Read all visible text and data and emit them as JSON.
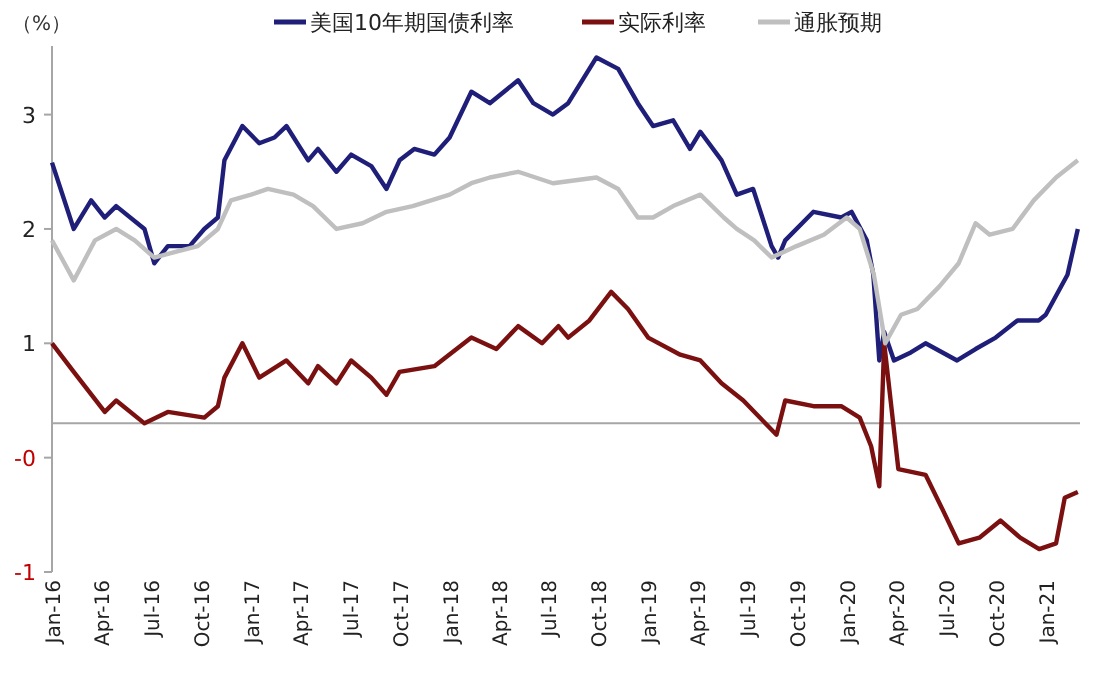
{
  "chart_data": {
    "type": "line",
    "ylabel": "（%）",
    "legend": "top",
    "xlim": [
      "2016-01-01",
      "2021-03-05"
    ],
    "ylim": [
      -1,
      3.6
    ],
    "yticks": [
      {
        "value": 3,
        "label": "3"
      },
      {
        "value": 2,
        "label": "2"
      },
      {
        "value": 1,
        "label": "1"
      },
      {
        "value": 0,
        "label": "-0"
      },
      {
        "value": -1,
        "label": "-1"
      }
    ],
    "xticks": [
      {
        "value": "2016-01-01",
        "label": "Jan-16"
      },
      {
        "value": "2016-04-01",
        "label": "Apr-16"
      },
      {
        "value": "2016-07-01",
        "label": "Jul-16"
      },
      {
        "value": "2016-10-01",
        "label": "Oct-16"
      },
      {
        "value": "2017-01-01",
        "label": "Jan-17"
      },
      {
        "value": "2017-04-01",
        "label": "Apr-17"
      },
      {
        "value": "2017-07-01",
        "label": "Jul-17"
      },
      {
        "value": "2017-10-01",
        "label": "Oct-17"
      },
      {
        "value": "2018-01-01",
        "label": "Jan-18"
      },
      {
        "value": "2018-04-01",
        "label": "Apr-18"
      },
      {
        "value": "2018-07-01",
        "label": "Jul-18"
      },
      {
        "value": "2018-10-01",
        "label": "Oct-18"
      },
      {
        "value": "2019-01-01",
        "label": "Jan-19"
      },
      {
        "value": "2019-04-01",
        "label": "Apr-19"
      },
      {
        "value": "2019-07-01",
        "label": "Jul-19"
      },
      {
        "value": "2019-10-01",
        "label": "Oct-19"
      },
      {
        "value": "2020-01-01",
        "label": "Jan-20"
      },
      {
        "value": "2020-04-01",
        "label": "Apr-20"
      },
      {
        "value": "2020-07-01",
        "label": "Jul-20"
      },
      {
        "value": "2020-10-01",
        "label": "Oct-20"
      },
      {
        "value": "2021-01-01",
        "label": "Jan-21"
      }
    ],
    "ref_lines": [
      {
        "axis": "y",
        "value": 0.3,
        "color": "#a6a6a6"
      }
    ],
    "series": [
      {
        "name": "美国10年期国债利率",
        "color": "#1f1f7a",
        "x": [
          "2016-01-01",
          "2016-02-10",
          "2016-03-13",
          "2016-04-07",
          "2016-04-28",
          "2016-06-19",
          "2016-07-07",
          "2016-08-01",
          "2016-09-10",
          "2016-10-07",
          "2016-11-01",
          "2016-11-13",
          "2016-12-16",
          "2017-01-16",
          "2017-02-13",
          "2017-03-07",
          "2017-04-16",
          "2017-05-04",
          "2017-06-07",
          "2017-07-04",
          "2017-08-10",
          "2017-09-07",
          "2017-10-01",
          "2017-10-28",
          "2017-12-04",
          "2018-01-01",
          "2018-02-10",
          "2018-03-16",
          "2018-05-07",
          "2018-06-04",
          "2018-07-10",
          "2018-08-07",
          "2018-09-28",
          "2018-11-07",
          "2018-12-13",
          "2019-01-10",
          "2019-02-16",
          "2019-03-19",
          "2019-04-07",
          "2019-05-16",
          "2019-06-13",
          "2019-07-13",
          "2019-08-16",
          "2019-08-28",
          "2019-09-10",
          "2019-11-01",
          "2019-12-22",
          "2020-01-10",
          "2020-02-07",
          "2020-02-19",
          "2020-03-01",
          "2020-03-10",
          "2020-03-28",
          "2020-04-28",
          "2020-05-25",
          "2020-07-22",
          "2020-08-25",
          "2020-10-01",
          "2020-11-10",
          "2020-12-19",
          "2021-01-01",
          "2021-02-10",
          "2021-03-01"
        ],
        "values": [
          2.58,
          2.0,
          2.25,
          2.1,
          2.2,
          2.0,
          1.7,
          1.85,
          1.85,
          2.0,
          2.1,
          2.6,
          2.9,
          2.75,
          2.8,
          2.9,
          2.6,
          2.7,
          2.5,
          2.65,
          2.55,
          2.35,
          2.6,
          2.7,
          2.65,
          2.8,
          3.2,
          3.1,
          3.3,
          3.1,
          3.0,
          3.1,
          3.5,
          3.4,
          3.1,
          2.9,
          2.95,
          2.7,
          2.85,
          2.6,
          2.3,
          2.35,
          1.85,
          1.75,
          1.9,
          2.15,
          2.1,
          2.15,
          1.9,
          1.6,
          0.85,
          1.1,
          0.85,
          0.92,
          1.0,
          0.85,
          0.95,
          1.05,
          1.2,
          1.2,
          1.25,
          1.6,
          2.0
        ]
      },
      {
        "name": "实际利率",
        "color": "#7b1010",
        "x": [
          "2016-01-01",
          "2016-02-10",
          "2016-04-07",
          "2016-04-28",
          "2016-06-19",
          "2016-08-01",
          "2016-10-07",
          "2016-11-01",
          "2016-11-13",
          "2016-12-16",
          "2017-01-16",
          "2017-03-07",
          "2017-04-16",
          "2017-05-04",
          "2017-06-07",
          "2017-07-04",
          "2017-08-10",
          "2017-09-07",
          "2017-10-01",
          "2017-12-04",
          "2018-02-10",
          "2018-03-28",
          "2018-05-07",
          "2018-06-20",
          "2018-07-20",
          "2018-08-07",
          "2018-09-15",
          "2018-10-25",
          "2018-11-25",
          "2019-01-01",
          "2019-03-01",
          "2019-04-07",
          "2019-05-16",
          "2019-06-25",
          "2019-08-25",
          "2019-09-10",
          "2019-11-01",
          "2019-12-22",
          "2020-01-25",
          "2020-02-15",
          "2020-03-01",
          "2020-03-10",
          "2020-04-05",
          "2020-05-25",
          "2020-06-25",
          "2020-07-25",
          "2020-09-01",
          "2020-10-10",
          "2020-11-15",
          "2020-12-20",
          "2021-01-20",
          "2021-02-05",
          "2021-03-01"
        ],
        "values": [
          1.0,
          0.75,
          0.4,
          0.5,
          0.3,
          0.4,
          0.35,
          0.45,
          0.7,
          1.0,
          0.7,
          0.85,
          0.65,
          0.8,
          0.65,
          0.85,
          0.7,
          0.55,
          0.75,
          0.8,
          1.05,
          0.95,
          1.15,
          1.0,
          1.15,
          1.05,
          1.2,
          1.45,
          1.3,
          1.05,
          0.9,
          0.85,
          0.65,
          0.5,
          0.2,
          0.5,
          0.45,
          0.45,
          0.35,
          0.1,
          -0.25,
          1.0,
          -0.1,
          -0.15,
          -0.45,
          -0.75,
          -0.7,
          -0.55,
          -0.7,
          -0.8,
          -0.75,
          -0.35,
          -0.3
        ]
      },
      {
        "name": "通胀预期",
        "color": "#bfbfbf",
        "x": [
          "2016-01-01",
          "2016-02-10",
          "2016-03-20",
          "2016-04-28",
          "2016-06-01",
          "2016-07-07",
          "2016-08-15",
          "2016-09-25",
          "2016-11-01",
          "2016-11-25",
          "2017-01-01",
          "2017-02-01",
          "2017-03-20",
          "2017-04-25",
          "2017-06-07",
          "2017-07-25",
          "2017-09-07",
          "2017-10-25",
          "2018-01-01",
          "2018-02-10",
          "2018-03-16",
          "2018-05-07",
          "2018-07-10",
          "2018-09-28",
          "2018-11-07",
          "2018-12-13",
          "2019-01-10",
          "2019-02-16",
          "2019-04-07",
          "2019-05-20",
          "2019-06-13",
          "2019-07-15",
          "2019-08-16",
          "2019-10-01",
          "2019-11-20",
          "2020-01-01",
          "2020-01-25",
          "2020-02-20",
          "2020-03-12",
          "2020-04-10",
          "2020-05-10",
          "2020-06-20",
          "2020-07-25",
          "2020-08-25",
          "2020-09-20",
          "2020-11-01",
          "2020-12-10",
          "2021-01-20",
          "2021-03-01"
        ],
        "values": [
          1.9,
          1.55,
          1.9,
          2.0,
          1.9,
          1.75,
          1.8,
          1.85,
          2.0,
          2.25,
          2.3,
          2.35,
          2.3,
          2.2,
          2.0,
          2.05,
          2.15,
          2.2,
          2.3,
          2.4,
          2.45,
          2.5,
          2.4,
          2.45,
          2.35,
          2.1,
          2.1,
          2.2,
          2.3,
          2.1,
          2.0,
          1.9,
          1.75,
          1.85,
          1.95,
          2.1,
          2.0,
          1.6,
          1.0,
          1.25,
          1.3,
          1.5,
          1.7,
          2.05,
          1.95,
          2.0,
          2.25,
          2.45,
          2.6
        ]
      }
    ]
  }
}
